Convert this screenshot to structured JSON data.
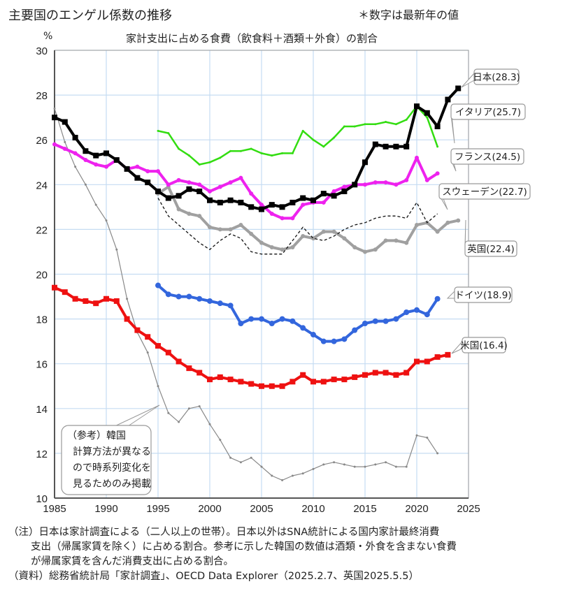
{
  "title": "主要国のエンゲル係数の推移",
  "top_note": "＊数字は最新年の値",
  "notes": [
    "（注）日本は家計調査による（二人以上の世帯）。日本以外はSNA統計による国内家計最終消費",
    "支出（帰属家賃を除く）に占める割合。参考に示した韓国の数値は酒類・外食を含まない食費",
    "が帰属家賃を含んだ消費支出に占める割合。",
    "（資料）総務省統計局「家計調査」、OECD Data Explorer（2025.2.7、英国2025.5.5）"
  ],
  "chart_data": {
    "type": "line",
    "title": "家計支出に占める食費（飲食料＋酒類＋外食）の割合",
    "ylabel": "%",
    "xlim": [
      1985,
      2025
    ],
    "ylim": [
      10,
      30
    ],
    "xticks": [
      1985,
      1990,
      1995,
      2000,
      2005,
      2010,
      2015,
      2020,
      2025
    ],
    "yticks": [
      10,
      12,
      14,
      16,
      18,
      20,
      22,
      24,
      26,
      28,
      30
    ],
    "grid": true,
    "series": [
      {
        "name": "日本",
        "label": "日本(28.3)",
        "color": "#000000",
        "style": "square",
        "start": 1985,
        "values": [
          27.0,
          26.8,
          26.1,
          25.5,
          25.3,
          25.4,
          25.1,
          24.7,
          24.3,
          24.1,
          23.7,
          23.4,
          23.5,
          23.8,
          23.7,
          23.3,
          23.2,
          23.3,
          23.2,
          23.0,
          22.9,
          23.1,
          23.0,
          23.2,
          23.4,
          23.3,
          23.6,
          23.5,
          23.7,
          24.0,
          25.0,
          25.8,
          25.7,
          25.7,
          25.7,
          27.5,
          27.2,
          26.6,
          27.8,
          28.3
        ]
      },
      {
        "name": "イタリア",
        "label": "イタリア(25.7)",
        "color": "#33dd11",
        "style": "line",
        "start": 1995,
        "values": [
          26.4,
          26.3,
          25.6,
          25.3,
          24.9,
          25.0,
          25.2,
          25.5,
          25.5,
          25.6,
          25.4,
          25.3,
          25.4,
          25.4,
          26.4,
          26.0,
          25.7,
          26.1,
          26.6,
          26.6,
          26.7,
          26.7,
          26.8,
          26.7,
          26.9,
          27.5,
          27.0,
          25.7
        ]
      },
      {
        "name": "フランス",
        "label": "フランス(24.5)",
        "color": "#ee22ee",
        "style": "dot",
        "start": 1985,
        "values": [
          25.8,
          25.6,
          25.4,
          25.1,
          24.9,
          24.8,
          25.1,
          24.7,
          24.8,
          24.6,
          24.6,
          24.0,
          24.2,
          24.1,
          24.0,
          23.7,
          23.9,
          24.1,
          24.3,
          23.6,
          23.1,
          22.7,
          22.5,
          22.5,
          23.1,
          23.2,
          23.2,
          23.7,
          23.9,
          24.0,
          24.0,
          24.1,
          24.1,
          24.0,
          24.2,
          25.2,
          24.2,
          24.5
        ]
      },
      {
        "name": "スウェーデン",
        "label": "スウェーデン(22.7)",
        "color": "#111111",
        "style": "dash",
        "start": 1995,
        "values": [
          23.4,
          22.6,
          22.2,
          21.8,
          21.4,
          21.1,
          21.5,
          21.8,
          21.6,
          21.0,
          20.9,
          20.9,
          20.9,
          21.5,
          22.1,
          21.6,
          21.5,
          21.7,
          22.0,
          22.2,
          22.3,
          22.5,
          22.6,
          22.6,
          22.5,
          23.2,
          22.3,
          22.7
        ]
      },
      {
        "name": "英国",
        "label": "英国(22.4)",
        "color": "#a0a0a0",
        "style": "dot",
        "start": 1995,
        "values": [
          23.6,
          23.9,
          22.9,
          22.7,
          22.6,
          22.1,
          22.0,
          22.0,
          22.2,
          21.8,
          21.4,
          21.2,
          21.1,
          21.2,
          21.7,
          21.6,
          21.9,
          21.9,
          21.6,
          21.2,
          21.0,
          21.1,
          21.5,
          21.5,
          21.4,
          22.2,
          22.3,
          21.9,
          22.3,
          22.4
        ]
      },
      {
        "name": "ドイツ",
        "label": "ドイツ(18.9)",
        "color": "#3366dd",
        "style": "dot",
        "start": 1995,
        "values": [
          19.5,
          19.1,
          19.0,
          19.0,
          18.9,
          18.8,
          18.7,
          18.6,
          17.8,
          18.0,
          18.0,
          17.8,
          18.0,
          17.9,
          17.6,
          17.3,
          17.0,
          17.0,
          17.1,
          17.5,
          17.8,
          17.9,
          17.9,
          18.0,
          18.3,
          18.4,
          18.2,
          18.9
        ]
      },
      {
        "name": "米国",
        "label": "米国(16.4)",
        "color": "#ee1111",
        "style": "square",
        "start": 1985,
        "values": [
          19.4,
          19.2,
          18.9,
          18.8,
          18.7,
          18.9,
          18.8,
          18.0,
          17.5,
          17.2,
          16.8,
          16.5,
          16.1,
          15.8,
          15.6,
          15.3,
          15.4,
          15.3,
          15.2,
          15.1,
          15.0,
          15.0,
          15.0,
          15.2,
          15.5,
          15.2,
          15.2,
          15.3,
          15.3,
          15.4,
          15.5,
          15.6,
          15.6,
          15.5,
          15.6,
          16.1,
          16.1,
          16.3,
          16.4
        ]
      },
      {
        "name": "韓国",
        "label": [
          "（参考）韓国",
          "計算方法が異なる",
          "ので時系列変化を",
          "見るためのみ掲載"
        ],
        "color": "#888888",
        "style": "thin",
        "start": 1985,
        "values": [
          27.4,
          25.9,
          24.8,
          24.0,
          23.1,
          22.4,
          21.1,
          18.9,
          17.4,
          16.5,
          15.0,
          13.8,
          13.4,
          14.0,
          14.1,
          13.3,
          12.6,
          11.8,
          11.6,
          11.8,
          11.4,
          11.0,
          10.8,
          11.0,
          11.1,
          11.3,
          11.5,
          11.6,
          11.5,
          11.4,
          11.4,
          11.5,
          11.6,
          11.4,
          11.4,
          12.8,
          12.7,
          12.0
        ]
      }
    ]
  }
}
